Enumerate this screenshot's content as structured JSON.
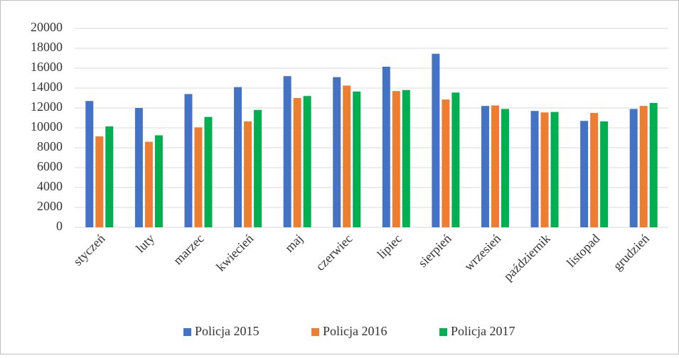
{
  "chart_data": {
    "type": "bar",
    "categories": [
      "styczeń",
      "luty",
      "marzec",
      "kwiecień",
      "maj",
      "czerwiec",
      "lipiec",
      "sierpień",
      "wrzesień",
      "październik",
      "listopad",
      "grudzień"
    ],
    "series": [
      {
        "name": "Policja 2015",
        "color": "#4472c4",
        "values": [
          12700,
          12000,
          13400,
          14100,
          15200,
          15100,
          16150,
          17450,
          12200,
          11700,
          10700,
          11900
        ]
      },
      {
        "name": "Policja 2016",
        "color": "#ed7d31",
        "values": [
          9150,
          8600,
          10050,
          10650,
          13000,
          14250,
          13700,
          12850,
          12250,
          11550,
          11500,
          12200
        ]
      },
      {
        "name": "Policja 2017",
        "color": "#00b050",
        "values": [
          10150,
          9250,
          11100,
          11800,
          13200,
          13650,
          13800,
          13550,
          11900,
          11600,
          10650,
          12500
        ]
      }
    ],
    "ylim": [
      0,
      20000
    ],
    "yticks": [
      0,
      2000,
      4000,
      6000,
      8000,
      10000,
      12000,
      14000,
      16000,
      18000,
      20000
    ],
    "grid": true,
    "legend": "bottom"
  }
}
